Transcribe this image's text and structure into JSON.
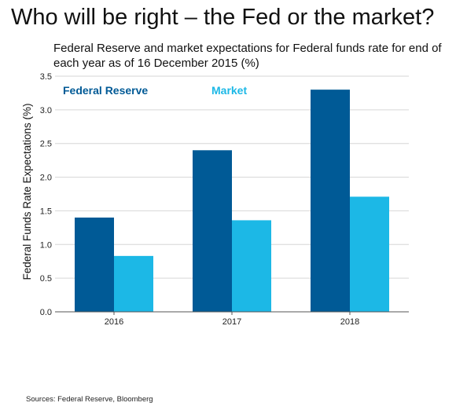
{
  "header": {
    "title": "Who will be right – the Fed or the market?"
  },
  "chart_data": {
    "type": "bar",
    "title": "Federal Reserve and market expectations for Federal funds rate for end of each year as of 16 December 2015 (%)",
    "xlabel": "",
    "ylabel": "Federal Funds Rate Expectations (%)",
    "categories": [
      "2016",
      "2017",
      "2018"
    ],
    "series": [
      {
        "name": "Federal Reserve",
        "values": [
          1.4,
          2.4,
          3.3
        ],
        "color": "#005a96"
      },
      {
        "name": "Market",
        "values": [
          0.83,
          1.36,
          1.71
        ],
        "color": "#1cb8e6"
      }
    ],
    "ylim": [
      0,
      3.5
    ],
    "yticks": [
      "0.0",
      "0.5",
      "1.0",
      "1.5",
      "2.0",
      "2.5",
      "3.0",
      "3.5"
    ],
    "grid": true,
    "legend_position": "top-left"
  },
  "footer": {
    "source": "Sources: Federal Reserve, Bloomberg"
  }
}
